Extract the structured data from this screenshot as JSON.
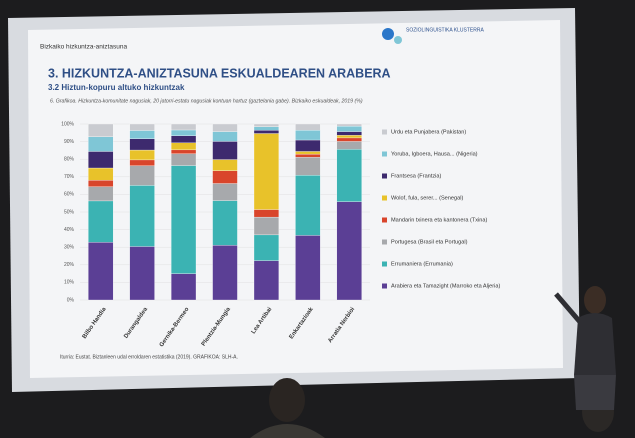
{
  "slide": {
    "header": "Bizkaiko hizkuntza-aniztasuna",
    "logo": "SOZIOLINGUISTIKA KLUSTERRA"
  },
  "chart_data": {
    "type": "stacked-bar",
    "section": "3. HIZKUNTZA-ANIZTASUNA ESKUALDEAREN ARABERA",
    "subsection": "3.2 Hiztun-kopuru altuko hizkuntzak",
    "title": "6. Grafikoa. Hizkuntza-komunitate nagusiak, 20 jatorri-estatu nagusiak kontuan hartuz (gaztelania gabe). Bizkaiko eskualdeak, 2019 (%)",
    "source": "Iturria: Eustat. Biztanleen udal erroldaren estatistika (2019). GRAFIKOA: SLH-A.",
    "categories": [
      "Bilbo Handia",
      "Durangaldea",
      "Gernika-Bermeo",
      "Plentzia-Mungia",
      "Lea Artibai",
      "Enkartazioak",
      "Arratia Nerbioi"
    ],
    "series": [
      {
        "name": "Arabiera eta Tamazight (Marroko eta Aljeria)",
        "color": "#5b3f95",
        "values": [
          32.8,
          30.4,
          15.0,
          31.1,
          22.4,
          36.7,
          55.9
        ]
      },
      {
        "name": "Errumaniera (Errumania)",
        "color": "#3bb3b3",
        "values": [
          23.5,
          34.7,
          61.4,
          25.4,
          14.6,
          34.2,
          29.7
        ]
      },
      {
        "name": "Portugesa (Brasil eta Portugal)",
        "color": "#a7a9ac",
        "values": [
          8.1,
          11.2,
          6.7,
          9.7,
          10.1,
          10.2,
          4.5
        ]
      },
      {
        "name": "Mandarin txinera eta kantonera (Txina)",
        "color": "#d9452b",
        "values": [
          3.7,
          3.3,
          2.2,
          7.3,
          4.3,
          1.8,
          2.0
        ]
      },
      {
        "name": "Wolof, fula, serer... (Senegal)",
        "color": "#e8c22a",
        "values": [
          6.9,
          5.6,
          4.0,
          6.3,
          43.2,
          1.5,
          1.5
        ]
      },
      {
        "name": "Frantsesa (Frantzia)",
        "color": "#3d2a6e",
        "values": [
          9.4,
          6.4,
          4.0,
          10.3,
          1.8,
          6.5,
          2.1
        ]
      },
      {
        "name": "Yoruba, Igboera, Hausa... (Nigeria)",
        "color": "#7fc6d6",
        "values": [
          8.4,
          4.7,
          3.3,
          5.6,
          2.1,
          5.5,
          3.1
        ]
      },
      {
        "name": "Urdu eta Punjabera (Pakistan)",
        "color": "#c9cbd0",
        "values": [
          7.2,
          3.7,
          3.4,
          4.3,
          1.5,
          3.6,
          1.2
        ]
      }
    ],
    "ylim": [
      0,
      100
    ],
    "yticks": [
      {
        "value": 0,
        "label": "0%"
      },
      {
        "value": 10,
        "label": "10%"
      },
      {
        "value": 20,
        "label": "20%"
      },
      {
        "value": 30,
        "label": "30%"
      },
      {
        "value": 40,
        "label": "40%"
      },
      {
        "value": 50,
        "label": "50%"
      },
      {
        "value": 60,
        "label": "60%"
      },
      {
        "value": 70,
        "label": "70%"
      },
      {
        "value": 80,
        "label": "80%"
      },
      {
        "value": 90,
        "label": "90%"
      },
      {
        "value": 100,
        "label": "100%"
      }
    ],
    "legend": "right"
  }
}
